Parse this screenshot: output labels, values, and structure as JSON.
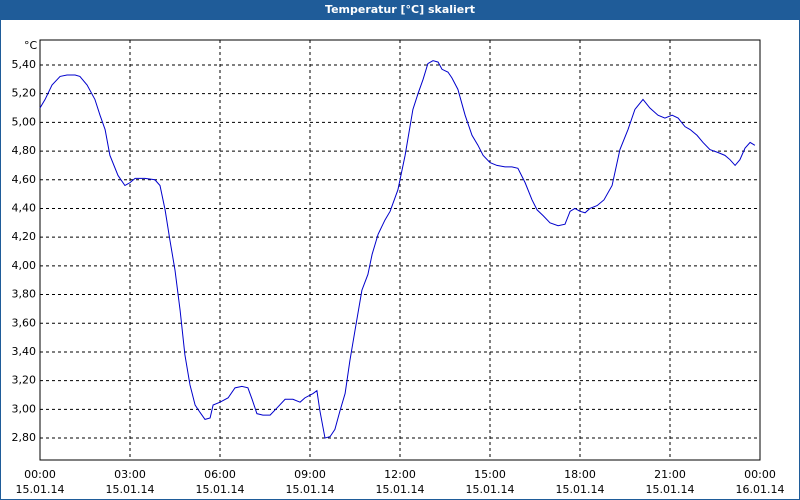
{
  "window": {
    "title": "Temperatur [°C] skaliert"
  },
  "chart_data": {
    "type": "line",
    "y_unit": "°C",
    "x": [
      0,
      0.17,
      0.4,
      0.67,
      0.9,
      1.17,
      1.33,
      1.57,
      1.83,
      2,
      2.17,
      2.33,
      2.6,
      2.83,
      3,
      3.17,
      3.5,
      3.83,
      4,
      4.17,
      4.33,
      4.5,
      4.67,
      4.83,
      5,
      5.17,
      5.33,
      5.5,
      5.67,
      5.77,
      6,
      6.27,
      6.5,
      6.73,
      6.93,
      7.07,
      7.23,
      7.43,
      7.67,
      7.9,
      8.17,
      8.43,
      8.67,
      8.83,
      9.1,
      9.23,
      9.33,
      9.5,
      9.67,
      9.83,
      10,
      10.17,
      10.33,
      10.5,
      10.73,
      10.93,
      11.07,
      11.27,
      11.5,
      11.67,
      11.93,
      12.17,
      12.43,
      12.6,
      12.77,
      12.93,
      13.1,
      13.27,
      13.4,
      13.6,
      13.73,
      13.93,
      14.17,
      14.4,
      14.6,
      14.77,
      15,
      15.23,
      15.5,
      15.73,
      15.93,
      16.17,
      16.4,
      16.57,
      16.77,
      17,
      17.27,
      17.5,
      17.67,
      17.83,
      18,
      18.17,
      18.33,
      18.57,
      18.8,
      19.07,
      19.33,
      19.6,
      19.83,
      20.1,
      20.33,
      20.6,
      20.83,
      21.07,
      21.27,
      21.5,
      21.67,
      21.9,
      22.1,
      22.33,
      22.6,
      22.83,
      23,
      23.17,
      23.33,
      23.5,
      23.67,
      23.83
    ],
    "series": [
      {
        "name": "Temperatur",
        "color": "#0000cc",
        "values": [
          5.1,
          5.16,
          5.26,
          5.32,
          5.33,
          5.33,
          5.32,
          5.26,
          5.16,
          5.05,
          4.95,
          4.77,
          4.63,
          4.56,
          4.58,
          4.61,
          4.61,
          4.6,
          4.56,
          4.39,
          4.18,
          3.97,
          3.69,
          3.38,
          3.17,
          3.03,
          2.98,
          2.93,
          2.94,
          3.03,
          3.05,
          3.08,
          3.15,
          3.16,
          3.15,
          3.07,
          2.97,
          2.96,
          2.96,
          3.01,
          3.07,
          3.07,
          3.05,
          3.08,
          3.11,
          3.13,
          2.99,
          2.8,
          2.81,
          2.86,
          2.99,
          3.11,
          3.34,
          3.55,
          3.83,
          3.94,
          4.08,
          4.22,
          4.32,
          4.38,
          4.53,
          4.77,
          5.09,
          5.2,
          5.3,
          5.41,
          5.43,
          5.42,
          5.37,
          5.35,
          5.31,
          5.23,
          5.05,
          4.91,
          4.84,
          4.77,
          4.72,
          4.7,
          4.69,
          4.69,
          4.68,
          4.58,
          4.46,
          4.39,
          4.35,
          4.3,
          4.28,
          4.29,
          4.38,
          4.4,
          4.38,
          4.37,
          4.4,
          4.42,
          4.46,
          4.56,
          4.81,
          4.95,
          5.09,
          5.16,
          5.1,
          5.05,
          5.03,
          5.05,
          5.03,
          4.97,
          4.95,
          4.91,
          4.86,
          4.81,
          4.79,
          4.77,
          4.74,
          4.7,
          4.74,
          4.82,
          4.86,
          4.84
        ]
      }
    ],
    "xlim": [
      0,
      24
    ],
    "xticks": [
      {
        "value": 0,
        "label": "00:00",
        "date": "15.01.14"
      },
      {
        "value": 3,
        "label": "03:00",
        "date": "15.01.14"
      },
      {
        "value": 6,
        "label": "06:00",
        "date": "15.01.14"
      },
      {
        "value": 9,
        "label": "09:00",
        "date": "15.01.14"
      },
      {
        "value": 12,
        "label": "12:00",
        "date": "15.01.14"
      },
      {
        "value": 15,
        "label": "15:00",
        "date": "15.01.14"
      },
      {
        "value": 18,
        "label": "18:00",
        "date": "15.01.14"
      },
      {
        "value": 21,
        "label": "21:00",
        "date": "15.01.14"
      },
      {
        "value": 24,
        "label": "00:00",
        "date": "16.01.14"
      }
    ],
    "ylim": [
      2.647,
      5.574
    ],
    "yticks": [
      {
        "value": 2.8,
        "label": "2,80"
      },
      {
        "value": 3.0,
        "label": "3,00"
      },
      {
        "value": 3.2,
        "label": "3,20"
      },
      {
        "value": 3.4,
        "label": "3,40"
      },
      {
        "value": 3.6,
        "label": "3,60"
      },
      {
        "value": 3.8,
        "label": "3,80"
      },
      {
        "value": 4.0,
        "label": "4,00"
      },
      {
        "value": 4.2,
        "label": "4,20"
      },
      {
        "value": 4.4,
        "label": "4,40"
      },
      {
        "value": 4.6,
        "label": "4,60"
      },
      {
        "value": 4.8,
        "label": "4,80"
      },
      {
        "value": 5.0,
        "label": "5,00"
      },
      {
        "value": 5.2,
        "label": "5,20"
      },
      {
        "value": 5.4,
        "label": "5,40"
      }
    ],
    "grid": true
  }
}
